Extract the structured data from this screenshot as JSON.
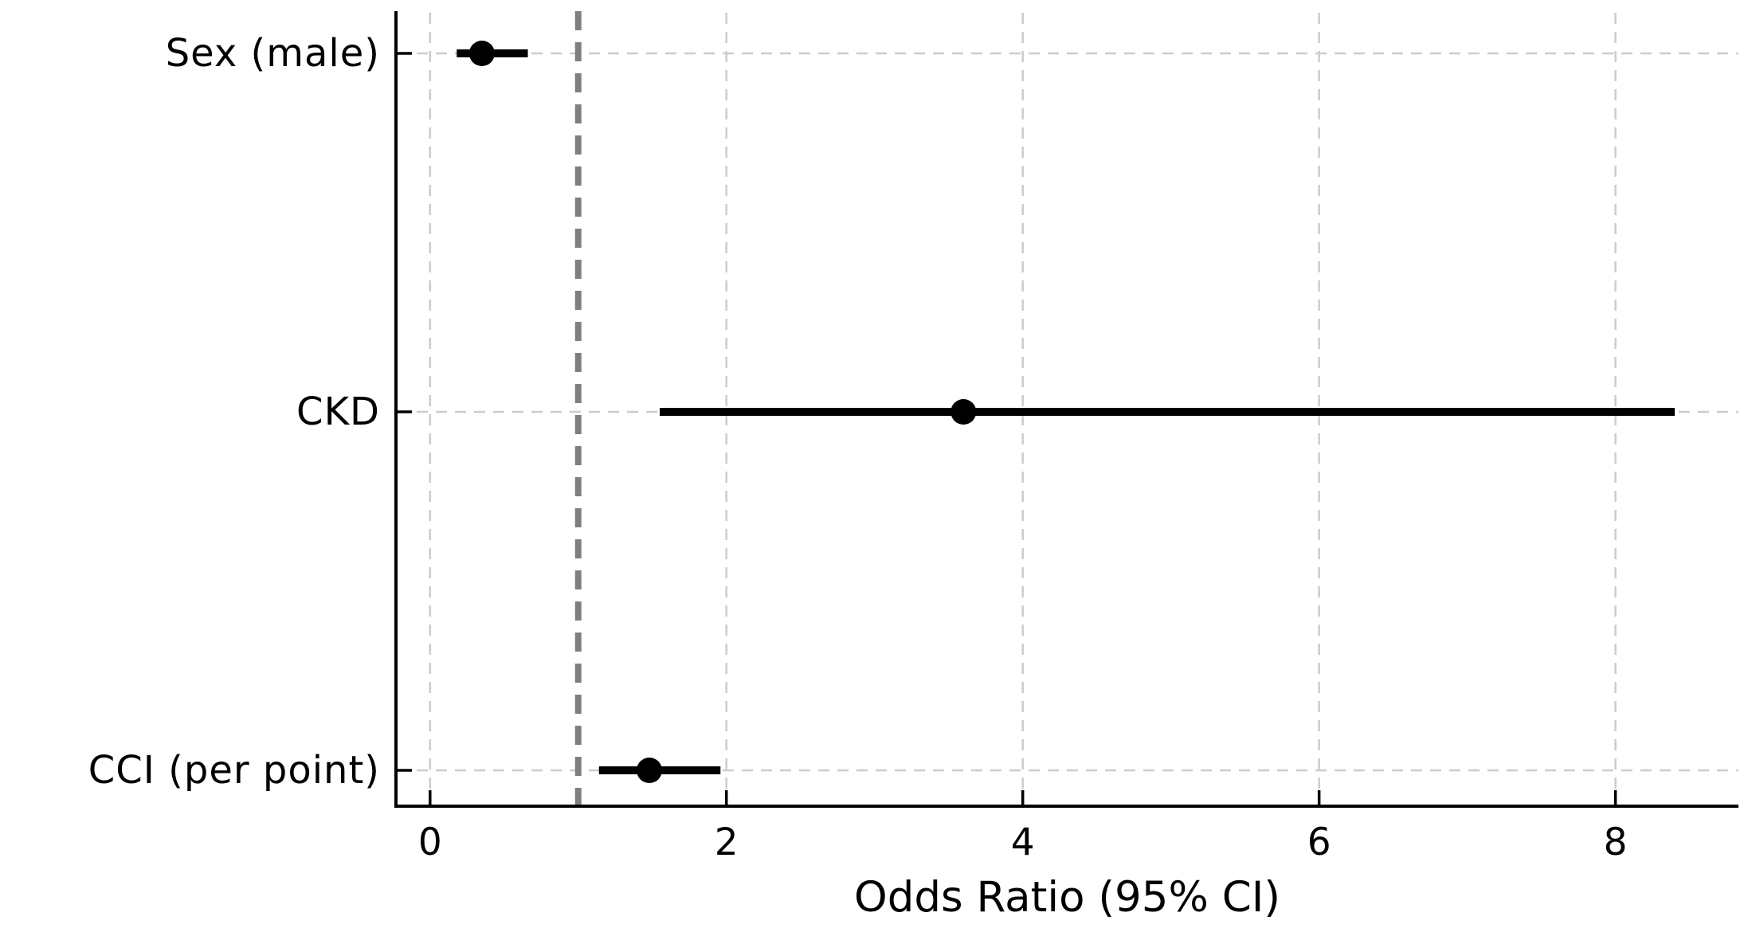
{
  "chart_data": {
    "type": "scatter",
    "subtype": "forest-plot",
    "title": "",
    "xlabel": "Odds Ratio (95% CI)",
    "ylabel": "",
    "rows": [
      {
        "label": "Sex (male)",
        "or": 0.35,
        "ci_low": 0.18,
        "ci_high": 0.66
      },
      {
        "label": "CKD",
        "or": 3.6,
        "ci_low": 1.55,
        "ci_high": 8.4
      },
      {
        "label": "CCI (per point)",
        "or": 1.48,
        "ci_low": 1.14,
        "ci_high": 1.96
      }
    ],
    "reference_line_x": 1,
    "x_ticks": [
      "0",
      "2",
      "4",
      "6",
      "8"
    ],
    "x_tick_values": [
      0,
      2,
      4,
      6,
      8
    ],
    "xlim": [
      -0.23,
      8.83
    ],
    "grid": true,
    "grid_style": "dashed",
    "legend": "none",
    "colors": {
      "marker": "#000000",
      "ci_line": "#000000",
      "reference_line": "#7f7f7f",
      "gridline": "#cccccc",
      "spine": "#000000",
      "tick": "#000000",
      "text": "#000000",
      "background": "#ffffff"
    }
  }
}
